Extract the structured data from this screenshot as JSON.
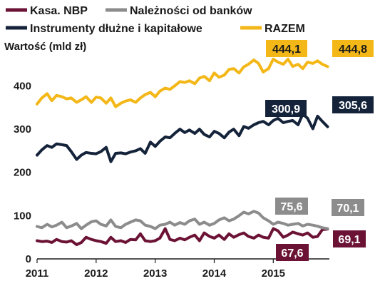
{
  "chart_data": {
    "type": "line",
    "ylabel": "Wartość (mld  zł)",
    "ylim": [
      0,
      470
    ],
    "yticks": [
      0,
      100,
      200,
      300,
      400
    ],
    "xlim": [
      2011,
      2015.95
    ],
    "xticks": [
      2011,
      2012,
      2013,
      2014,
      2015
    ],
    "grid": false,
    "legend_position": "top",
    "series": [
      {
        "name": "Kasa. NBP",
        "color": "#6b1235",
        "x": [
          2011,
          2011.08,
          2011.17,
          2011.25,
          2011.33,
          2011.42,
          2011.5,
          2011.58,
          2011.67,
          2011.75,
          2011.83,
          2011.92,
          2012,
          2012.08,
          2012.17,
          2012.25,
          2012.33,
          2012.42,
          2012.5,
          2012.58,
          2012.67,
          2012.75,
          2012.83,
          2012.92,
          2013,
          2013.08,
          2013.17,
          2013.25,
          2013.33,
          2013.42,
          2013.5,
          2013.58,
          2013.67,
          2013.75,
          2013.83,
          2013.92,
          2014,
          2014.08,
          2014.17,
          2014.25,
          2014.33,
          2014.42,
          2014.5,
          2014.58,
          2014.67,
          2014.75,
          2014.83,
          2014.92,
          2015,
          2015.08,
          2015.17,
          2015.25,
          2015.33,
          2015.42,
          2015.5,
          2015.58,
          2015.67,
          2015.75,
          2015.83,
          2015.92
        ],
        "values": [
          42,
          40,
          41,
          38,
          45,
          40,
          39,
          42,
          33,
          38,
          50,
          45,
          42,
          40,
          36,
          50,
          40,
          42,
          38,
          45,
          44,
          58,
          42,
          40,
          42,
          48,
          70,
          45,
          42,
          48,
          44,
          50,
          55,
          42,
          60,
          52,
          48,
          55,
          45,
          58,
          50,
          56,
          60,
          52,
          48,
          55,
          50,
          48,
          70,
          65,
          50,
          55,
          62,
          58,
          55,
          60,
          50,
          52,
          67.6,
          69.1
        ]
      },
      {
        "name": "Należności od banków",
        "color": "#8c8c8c",
        "x": [
          2011,
          2011.08,
          2011.17,
          2011.25,
          2011.33,
          2011.42,
          2011.5,
          2011.58,
          2011.67,
          2011.75,
          2011.83,
          2011.92,
          2012,
          2012.08,
          2012.17,
          2012.25,
          2012.33,
          2012.42,
          2012.5,
          2012.58,
          2012.67,
          2012.75,
          2012.83,
          2012.92,
          2013,
          2013.08,
          2013.17,
          2013.25,
          2013.33,
          2013.42,
          2013.5,
          2013.58,
          2013.67,
          2013.75,
          2013.83,
          2013.92,
          2014,
          2014.08,
          2014.17,
          2014.25,
          2014.33,
          2014.42,
          2014.5,
          2014.58,
          2014.67,
          2014.75,
          2014.83,
          2014.92,
          2015,
          2015.08,
          2015.17,
          2015.25,
          2015.33,
          2015.42,
          2015.5,
          2015.58,
          2015.67,
          2015.75,
          2015.83,
          2015.92
        ],
        "values": [
          75,
          72,
          80,
          74,
          78,
          85,
          72,
          76,
          82,
          70,
          78,
          86,
          88,
          80,
          76,
          90,
          75,
          72,
          80,
          85,
          90,
          88,
          78,
          75,
          70,
          78,
          80,
          85,
          78,
          84,
          80,
          88,
          92,
          80,
          85,
          78,
          82,
          90,
          95,
          88,
          92,
          100,
          108,
          104,
          110,
          106,
          95,
          88,
          80,
          85,
          82,
          78,
          80,
          82,
          76,
          80,
          78,
          75.6,
          72,
          70.1
        ]
      },
      {
        "name": "Instrumenty dłużne i kapitałowe",
        "color": "#14233a",
        "x": [
          2011,
          2011.08,
          2011.17,
          2011.25,
          2011.33,
          2011.42,
          2011.5,
          2011.58,
          2011.67,
          2011.75,
          2011.83,
          2011.92,
          2012,
          2012.08,
          2012.17,
          2012.25,
          2012.33,
          2012.42,
          2012.5,
          2012.58,
          2012.67,
          2012.75,
          2012.83,
          2012.92,
          2013,
          2013.08,
          2013.17,
          2013.25,
          2013.33,
          2013.42,
          2013.5,
          2013.58,
          2013.67,
          2013.75,
          2013.83,
          2013.92,
          2014,
          2014.08,
          2014.17,
          2014.25,
          2014.33,
          2014.42,
          2014.5,
          2014.58,
          2014.67,
          2014.75,
          2014.83,
          2014.92,
          2015,
          2015.08,
          2015.17,
          2015.25,
          2015.33,
          2015.42,
          2015.5,
          2015.58,
          2015.67,
          2015.75,
          2015.83,
          2015.92
        ],
        "values": [
          240,
          252,
          262,
          258,
          266,
          264,
          262,
          248,
          230,
          240,
          246,
          244,
          243,
          248,
          258,
          225,
          244,
          245,
          243,
          247,
          250,
          255,
          244,
          270,
          260,
          272,
          282,
          280,
          290,
          300,
          292,
          298,
          290,
          300,
          288,
          282,
          295,
          290,
          280,
          293,
          300,
          285,
          306,
          302,
          310,
          315,
          318,
          310,
          320,
          325,
          315,
          318,
          320,
          310,
          335,
          325,
          300.9,
          330,
          318,
          305.6
        ]
      },
      {
        "name": "RAZEM",
        "color": "#f3b718",
        "x": [
          2011,
          2011.08,
          2011.17,
          2011.25,
          2011.33,
          2011.42,
          2011.5,
          2011.58,
          2011.67,
          2011.75,
          2011.83,
          2011.92,
          2012,
          2012.08,
          2012.17,
          2012.25,
          2012.33,
          2012.42,
          2012.5,
          2012.58,
          2012.67,
          2012.75,
          2012.83,
          2012.92,
          2013,
          2013.08,
          2013.17,
          2013.25,
          2013.33,
          2013.42,
          2013.5,
          2013.58,
          2013.67,
          2013.75,
          2013.83,
          2013.92,
          2014,
          2014.08,
          2014.17,
          2014.25,
          2014.33,
          2014.42,
          2014.5,
          2014.58,
          2014.67,
          2014.75,
          2014.83,
          2014.92,
          2015,
          2015.08,
          2015.17,
          2015.25,
          2015.33,
          2015.42,
          2015.5,
          2015.58,
          2015.67,
          2015.75,
          2015.83,
          2015.92
        ],
        "values": [
          358,
          372,
          382,
          366,
          378,
          375,
          370,
          372,
          362,
          368,
          375,
          362,
          374,
          372,
          360,
          372,
          352,
          360,
          365,
          368,
          362,
          372,
          380,
          385,
          375,
          388,
          395,
          392,
          400,
          410,
          408,
          412,
          405,
          418,
          422,
          412,
          430,
          420,
          425,
          438,
          440,
          430,
          444.1,
          450,
          460,
          452,
          432,
          440,
          462,
          455,
          450,
          462,
          445,
          450,
          440,
          455,
          452,
          458,
          450,
          444.8
        ]
      }
    ],
    "data_labels": [
      {
        "text": "444,1",
        "series": "RAZEM"
      },
      {
        "text": "444,8",
        "series": "RAZEM"
      },
      {
        "text": "300,9",
        "series": "Instrumenty dłużne i kapitałowe"
      },
      {
        "text": "305,6",
        "series": "Instrumenty dłużne i kapitałowe"
      },
      {
        "text": "75,6",
        "series": "Należności od banków"
      },
      {
        "text": "70,1",
        "series": "Należności od banków"
      },
      {
        "text": "67,6",
        "series": "Kasa. NBP"
      },
      {
        "text": "69,1",
        "series": "Kasa. NBP"
      }
    ]
  }
}
